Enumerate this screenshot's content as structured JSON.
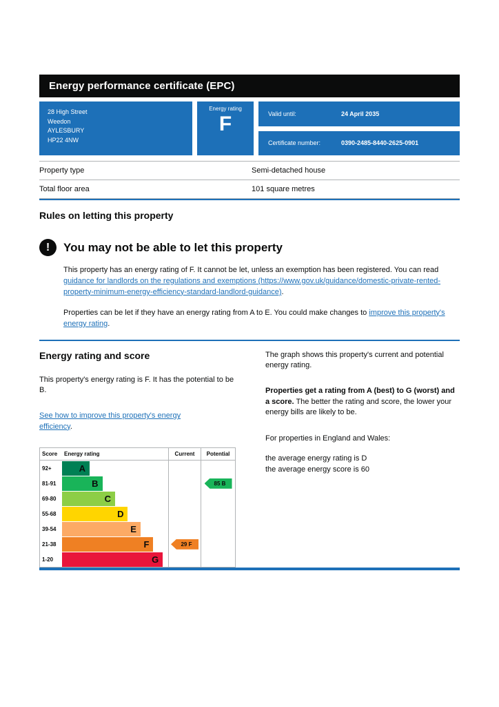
{
  "colors": {
    "accent-blue": "#1d70b8",
    "ink": "#0b0c0c",
    "border-grey": "#b1b4b6"
  },
  "icons": {
    "warning": "!"
  },
  "header": {
    "title": "Energy performance certificate (EPC)"
  },
  "summary": {
    "address_lines": [
      "28 High Street",
      "Weedon",
      "AYLESBURY",
      "HP22 4NW"
    ],
    "energy_rating_label": "Energy rating",
    "energy_rating": "F",
    "valid_until_label": "Valid until:",
    "valid_until": "24 April 2035",
    "certificate_number_label": "Certificate number:",
    "certificate_number": "0390-2485-8440-2625-0901"
  },
  "property_details": {
    "rows": [
      {
        "label": "Property type",
        "value": "Semi-detached house"
      },
      {
        "label": "Total floor area",
        "value": "101 square metres"
      }
    ]
  },
  "rules_section": {
    "heading": "Rules on letting this property",
    "warning_heading": "You may not be able to let this property",
    "para1_before": "This property has an energy rating of F. It cannot be let, unless an exemption has been registered. You can read ",
    "para1_link": "guidance for landlords on the regulations and exemptions (https://www.gov.uk/guidance/domestic-private-rented-property-minimum-energy-efficiency-standard-landlord-guidance)",
    "para1_after": ".",
    "para2_before": "Properties can be let if they have an energy rating from A to E. You could make changes to ",
    "para2_link": "improve this property's energy rating",
    "para2_after": "."
  },
  "rating_section": {
    "heading": "Energy rating and score",
    "description": "This property's energy rating is F. It has the potential to be B.",
    "improve_link": "See how to improve this property's energy efficiency",
    "improve_suffix": "."
  },
  "right_column": {
    "para1": "The graph shows this property's current and potential energy rating.",
    "para2_bold": "Properties get a rating from A (best) to G (worst) and a score.",
    "para2_rest": " The better the rating and score, the lower your energy bills are likely to be.",
    "para3": "For properties in England and Wales:",
    "para4": "the average energy rating is D",
    "para5": "the average energy score is 60"
  },
  "chart_data": {
    "type": "table",
    "title": "Energy rating and score",
    "headers": [
      "Score",
      "Energy rating",
      "Current",
      "Potential"
    ],
    "bands": [
      {
        "score": "92+",
        "letter": "A",
        "color": "#008054",
        "width_pct": 26
      },
      {
        "score": "81-91",
        "letter": "B",
        "color": "#19b459",
        "width_pct": 38
      },
      {
        "score": "69-80",
        "letter": "C",
        "color": "#8dce46",
        "width_pct": 50
      },
      {
        "score": "55-68",
        "letter": "D",
        "color": "#ffd500",
        "width_pct": 62
      },
      {
        "score": "39-54",
        "letter": "E",
        "color": "#fcaa65",
        "width_pct": 74
      },
      {
        "score": "21-38",
        "letter": "F",
        "color": "#ef8023",
        "width_pct": 86
      },
      {
        "score": "1-20",
        "letter": "G",
        "color": "#e9153b",
        "width_pct": 95
      }
    ],
    "current": {
      "score": 29,
      "letter": "F",
      "color": "#ef8023",
      "band_index": 5
    },
    "potential": {
      "score": 85,
      "letter": "B",
      "color": "#19b459",
      "band_index": 1
    }
  }
}
